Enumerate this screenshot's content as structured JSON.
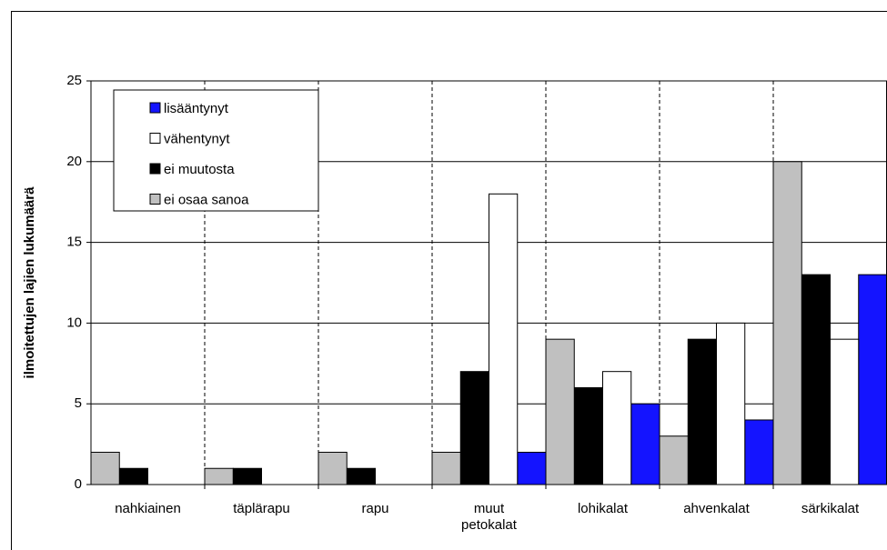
{
  "chart_data": {
    "type": "bar",
    "y_label": "ilmoitettujen lajien lukumäärä",
    "categories": [
      "nahkiainen",
      "täplärapu",
      "rapu",
      "muut petokalat",
      "lohikalat",
      "ahvenkalat",
      "särkikalat"
    ],
    "series": [
      {
        "name": "lisääntynyt",
        "color": "#1414ff",
        "values": [
          0,
          0,
          0,
          2,
          5,
          4,
          13
        ]
      },
      {
        "name": "vähentynyt",
        "color": "#ffffff",
        "values": [
          0,
          0,
          0,
          18,
          7,
          10,
          9
        ]
      },
      {
        "name": "ei muutosta",
        "color": "#000000",
        "values": [
          1,
          1,
          1,
          7,
          6,
          9,
          13
        ]
      },
      {
        "name": "ei osaa sanoa",
        "color": "#c0c0c0",
        "values": [
          2,
          1,
          2,
          2,
          9,
          3,
          20
        ]
      }
    ],
    "ylim": [
      0,
      25
    ],
    "yticks": [
      0,
      5,
      10,
      15,
      20,
      25
    ],
    "grid": true,
    "legend": "upper left"
  }
}
